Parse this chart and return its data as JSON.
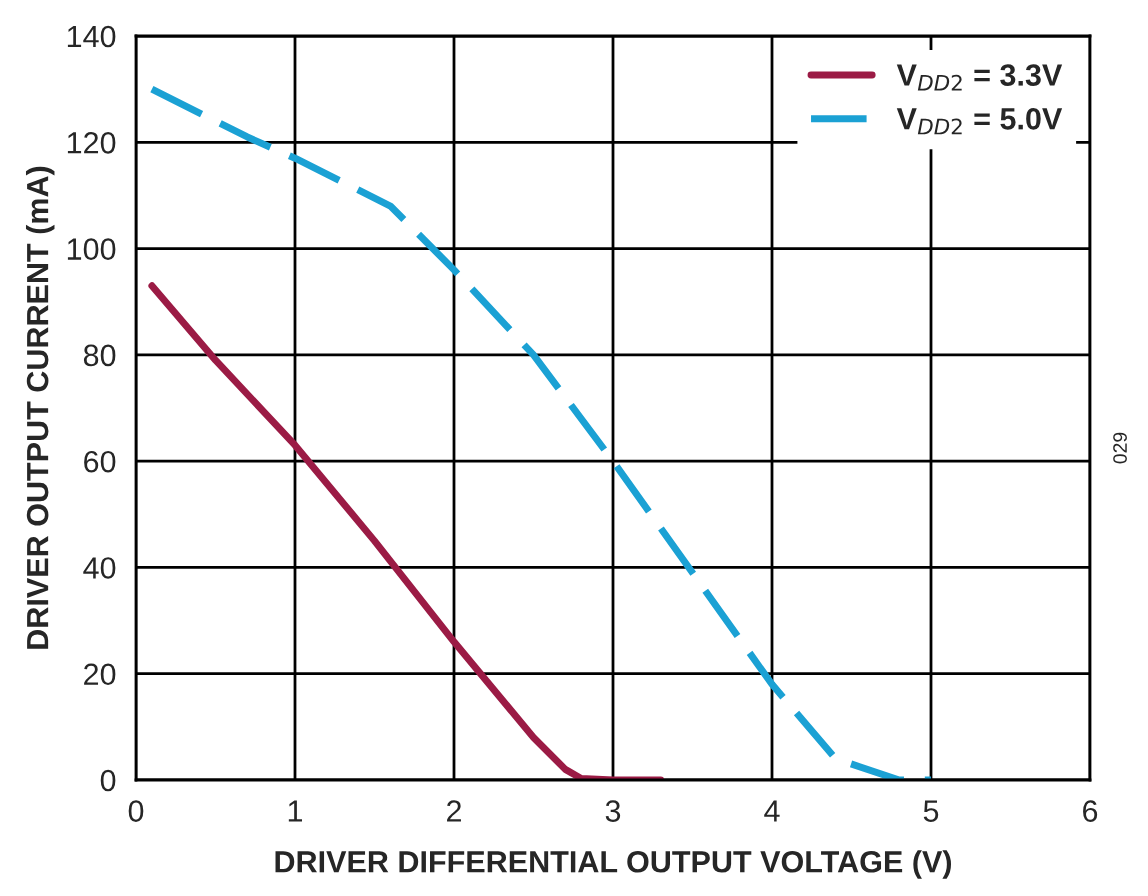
{
  "chart_data": {
    "type": "line",
    "xlabel": "DRIVER DIFFERENTIAL OUTPUT VOLTAGE (V)",
    "ylabel": "DRIVER OUTPUT CURRENT (mA)",
    "xlim": [
      0,
      6
    ],
    "xticks": [
      0,
      1,
      2,
      3,
      4,
      5,
      6
    ],
    "ylim": [
      0,
      140
    ],
    "yticks": [
      0,
      20,
      40,
      60,
      80,
      100,
      120,
      140
    ],
    "grid": true,
    "legend": "top right",
    "annotations": [
      "029"
    ],
    "series": [
      {
        "name": "V$_{DD2}$ = 3.3V",
        "color": "#9b1b45",
        "line_style": "solid",
        "x": [
          0.1,
          0.5,
          1.0,
          1.5,
          2.0,
          2.5,
          2.7,
          2.8,
          3.0,
          3.3
        ],
        "values": [
          93,
          79,
          63,
          45,
          26,
          8,
          2,
          0.3,
          0,
          0
        ]
      },
      {
        "name": "V$_{DD2}$ = 5.0V",
        "color": "#1ba1d4",
        "line_style": "dashed",
        "x": [
          0.1,
          0.7,
          1.0,
          1.6,
          2.0,
          2.5,
          3.0,
          3.5,
          4.0,
          4.4,
          4.8,
          5.0
        ],
        "values": [
          130,
          121,
          117,
          108,
          96,
          80,
          60,
          39,
          18,
          4,
          0,
          0
        ]
      }
    ]
  }
}
